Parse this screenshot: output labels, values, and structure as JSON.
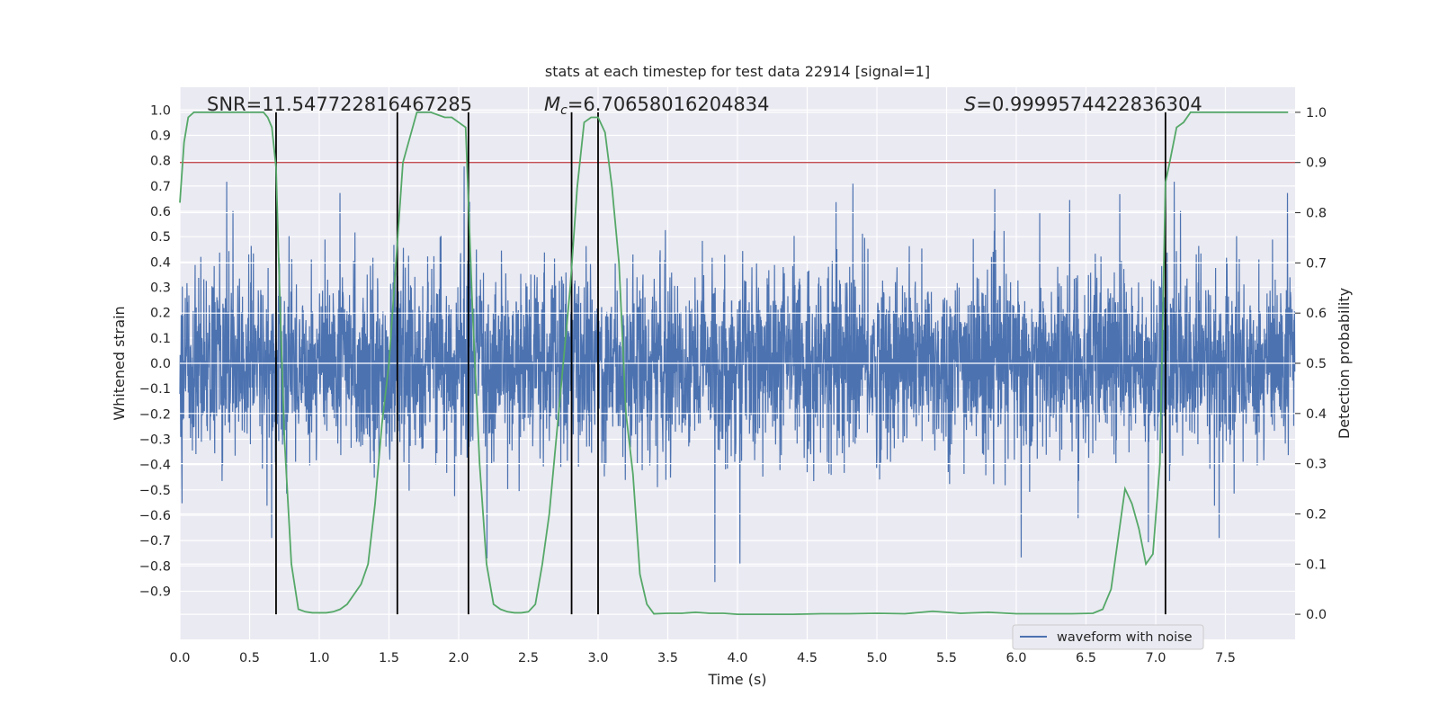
{
  "chart_data": {
    "type": "line",
    "title": "stats at each timestep for test data 22914 [signal=1]",
    "xlabel": "Time (s)",
    "ylabel": "Whitened strain",
    "y2label": "Detection probability",
    "xlim": [
      0.0,
      8.0
    ],
    "ylim": [
      -1.09,
      1.09
    ],
    "y2lim": [
      -0.05,
      1.05
    ],
    "x_ticks": [
      "0.0",
      "0.5",
      "1.0",
      "1.5",
      "2.0",
      "2.5",
      "3.0",
      "3.5",
      "4.0",
      "4.5",
      "5.0",
      "5.5",
      "6.0",
      "6.5",
      "7.0",
      "7.5"
    ],
    "y_ticks": [
      "1.0",
      "0.9",
      "0.8",
      "0.7",
      "0.6",
      "0.5",
      "0.4",
      "0.3",
      "0.2",
      "0.1",
      "0.0",
      "−0.1",
      "−0.2",
      "−0.3",
      "−0.4",
      "−0.5",
      "−0.6",
      "−0.7",
      "−0.8",
      "−0.9"
    ],
    "y2_ticks": [
      "1.0",
      "0.9",
      "0.8",
      "0.7",
      "0.6",
      "0.5",
      "0.4",
      "0.3",
      "0.2",
      "0.1",
      "0.0"
    ],
    "grid": true,
    "legend_position": "lower-right",
    "annotations": {
      "snr": "SNR=11.547722816467285",
      "mc_symbol": "M",
      "mc_sub": "c",
      "mc_value": "=6.70658016204834",
      "s_symbol": "S",
      "s_value": "=0.9999574422836304"
    },
    "threshold": {
      "value": 0.9,
      "axis": "right",
      "color": "#c44e52"
    },
    "vertical_lines": [
      0.69,
      1.56,
      2.07,
      2.81,
      3.0,
      7.07
    ],
    "series": [
      {
        "name": "waveform with noise",
        "color": "#4c72b0",
        "axis": "left",
        "kind": "noisy-waveform",
        "samples": 4096,
        "approx_sigma": 0.18,
        "peak_min": -0.9,
        "peak_max": 1.0
      },
      {
        "color": "#55a868",
        "axis": "right",
        "x": [
          0.0,
          0.03,
          0.06,
          0.1,
          0.15,
          0.2,
          0.3,
          0.4,
          0.5,
          0.55,
          0.6,
          0.63,
          0.66,
          0.69,
          0.72,
          0.75,
          0.8,
          0.85,
          0.9,
          0.95,
          1.0,
          1.05,
          1.1,
          1.15,
          1.2,
          1.25,
          1.3,
          1.35,
          1.4,
          1.45,
          1.5,
          1.55,
          1.6,
          1.65,
          1.7,
          1.8,
          1.9,
          1.95,
          2.0,
          2.05,
          2.1,
          2.15,
          2.2,
          2.25,
          2.3,
          2.35,
          2.4,
          2.45,
          2.5,
          2.55,
          2.6,
          2.65,
          2.7,
          2.75,
          2.8,
          2.85,
          2.9,
          2.95,
          3.0,
          3.05,
          3.1,
          3.15,
          3.2,
          3.25,
          3.3,
          3.35,
          3.4,
          3.5,
          3.6,
          3.7,
          3.8,
          3.9,
          4.0,
          4.2,
          4.4,
          4.6,
          4.8,
          5.0,
          5.2,
          5.4,
          5.6,
          5.8,
          6.0,
          6.2,
          6.4,
          6.55,
          6.62,
          6.68,
          6.73,
          6.78,
          6.83,
          6.88,
          6.93,
          6.98,
          7.03,
          7.07,
          7.1,
          7.15,
          7.2,
          7.25,
          7.3,
          7.4,
          7.6,
          7.8,
          7.95
        ],
        "values": [
          0.82,
          0.94,
          0.99,
          1.0,
          1.0,
          1.0,
          1.0,
          1.0,
          1.0,
          1.0,
          1.0,
          0.99,
          0.97,
          0.89,
          0.6,
          0.35,
          0.1,
          0.01,
          0.005,
          0.003,
          0.003,
          0.003,
          0.005,
          0.01,
          0.02,
          0.04,
          0.06,
          0.1,
          0.22,
          0.38,
          0.5,
          0.7,
          0.9,
          0.95,
          1.0,
          1.0,
          0.99,
          0.99,
          0.98,
          0.97,
          0.6,
          0.3,
          0.1,
          0.02,
          0.01,
          0.005,
          0.003,
          0.003,
          0.005,
          0.02,
          0.1,
          0.2,
          0.35,
          0.5,
          0.65,
          0.85,
          0.98,
          0.99,
          0.99,
          0.96,
          0.85,
          0.7,
          0.4,
          0.28,
          0.08,
          0.02,
          0.001,
          0.002,
          0.002,
          0.004,
          0.002,
          0.002,
          0.0,
          0.0,
          0.0,
          0.001,
          0.001,
          0.002,
          0.001,
          0.006,
          0.002,
          0.004,
          0.001,
          0.001,
          0.001,
          0.002,
          0.01,
          0.05,
          0.15,
          0.25,
          0.22,
          0.17,
          0.1,
          0.12,
          0.3,
          0.86,
          0.9,
          0.97,
          0.98,
          1.0,
          1.0,
          1.0,
          1.0,
          1.0,
          1.0
        ]
      }
    ]
  },
  "colors": {
    "plot_background": "#eaeaf2",
    "grid": "#ffffff",
    "waveform": "#4c72b0",
    "probability": "#55a868",
    "threshold": "#c44e52",
    "markers": "#000000"
  }
}
